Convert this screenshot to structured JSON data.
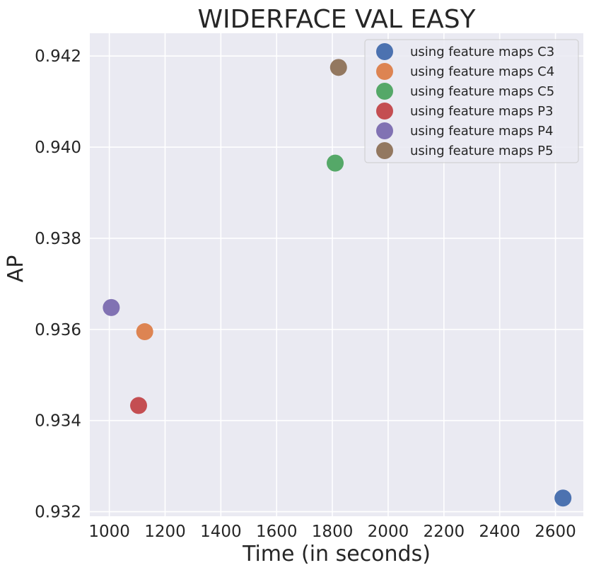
{
  "chart_data": {
    "type": "scatter",
    "title": "WIDERFACE VAL EASY",
    "xlabel": "Time (in seconds)",
    "ylabel": "AP",
    "xlim": [
      930,
      2700
    ],
    "ylim": [
      0.9319,
      0.9425
    ],
    "xticks": [
      1000,
      1200,
      1400,
      1600,
      1800,
      2000,
      2200,
      2400,
      2600
    ],
    "yticks": [
      0.932,
      0.934,
      0.936,
      0.938,
      0.94,
      0.942
    ],
    "ytick_labels": [
      "0.932",
      "0.934",
      "0.936",
      "0.938",
      "0.940",
      "0.942"
    ],
    "grid": true,
    "legend_position": "top-right",
    "series": [
      {
        "name": "using feature maps C3",
        "color": "#4c72b0",
        "x": 2627,
        "y": 0.9323
      },
      {
        "name": "using feature maps C4",
        "color": "#dd8452",
        "x": 1127,
        "y": 0.93595
      },
      {
        "name": "using feature maps C5",
        "color": "#55a868",
        "x": 1810,
        "y": 0.93965
      },
      {
        "name": "using feature maps P3",
        "color": "#c44e52",
        "x": 1105,
        "y": 0.93433
      },
      {
        "name": "using feature maps P4",
        "color": "#8172b3",
        "x": 1007,
        "y": 0.93648
      },
      {
        "name": "using feature maps P5",
        "color": "#937860",
        "x": 1822,
        "y": 0.94175
      }
    ],
    "colors": {
      "plot_background": "#eaeaf2",
      "grid": "#ffffff",
      "text": "#262626"
    }
  }
}
